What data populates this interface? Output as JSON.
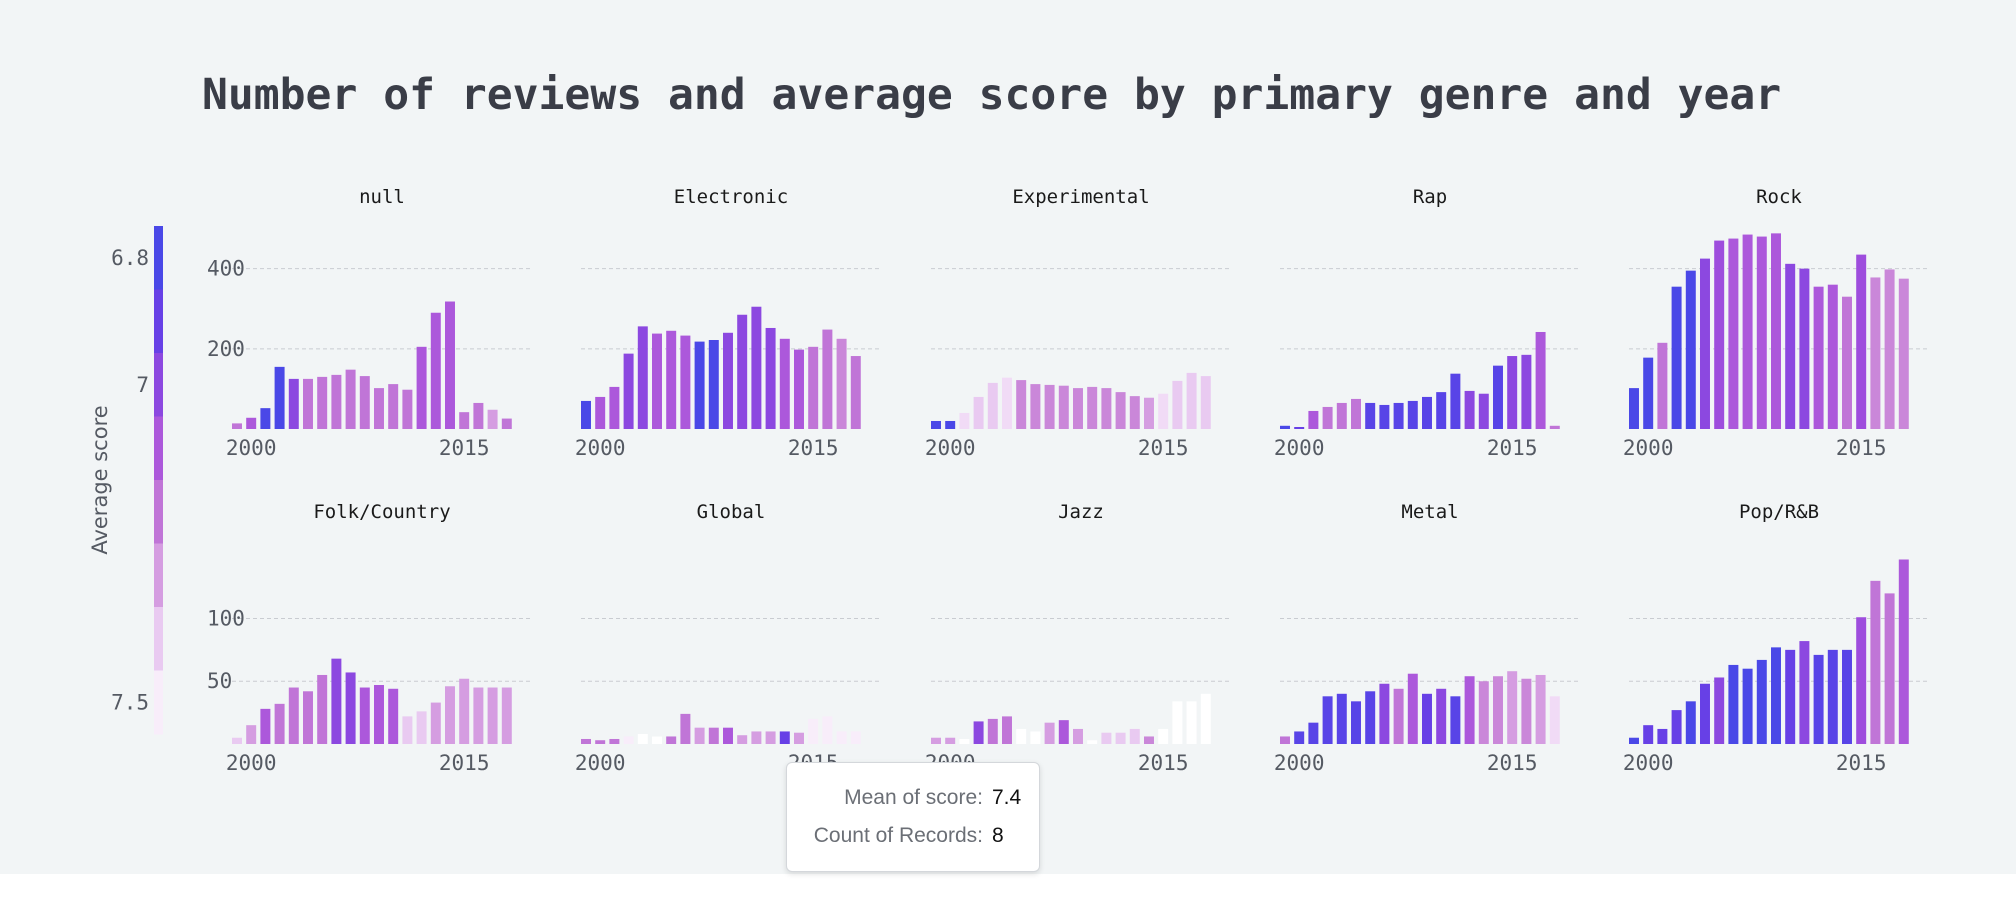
{
  "title": "Number of reviews and average score by primary genre and year",
  "legend": {
    "title": "Average score",
    "tick_labels": [
      "6.8",
      "7",
      "7.5"
    ],
    "tick_values": [
      6.8,
      7.0,
      7.5
    ],
    "domain": [
      6.75,
      7.55
    ],
    "colors": [
      "#3b4ce8",
      "#6a3fe6",
      "#a64fdc",
      "#c67ed6",
      "#e8c6f0",
      "#ffffff"
    ]
  },
  "tooltip": {
    "rows": [
      {
        "key": "Mean of score:",
        "value": "7.4"
      },
      {
        "key": "Count of Records:",
        "value": "8"
      }
    ]
  },
  "chart_data": {
    "type": "bar",
    "x": [
      1999,
      2000,
      2001,
      2002,
      2003,
      2004,
      2005,
      2006,
      2007,
      2008,
      2009,
      2010,
      2011,
      2012,
      2013,
      2014,
      2015,
      2016,
      2017,
      2018
    ],
    "xticks": [
      "2000",
      "2015"
    ],
    "xtick_values": [
      2000,
      2015
    ],
    "rows": [
      {
        "yticks": [
          "400",
          "200"
        ],
        "ytick_values": [
          400,
          200
        ],
        "ylim": [
          0,
          490
        ]
      },
      {
        "yticks": [
          "100",
          "50"
        ],
        "ytick_values": [
          100,
          50
        ],
        "ylim": [
          0,
          150
        ]
      }
    ],
    "panels": [
      {
        "name": "null",
        "row": 0,
        "counts": [
          14,
          28,
          52,
          155,
          125,
          125,
          130,
          135,
          148,
          132,
          102,
          112,
          98,
          205,
          290,
          318,
          42,
          65,
          48,
          26
        ],
        "scores": [
          7.2,
          7.1,
          6.8,
          6.8,
          7.0,
          7.2,
          7.2,
          7.2,
          7.2,
          7.2,
          7.2,
          7.2,
          7.2,
          7.1,
          7.1,
          7.1,
          7.2,
          7.2,
          7.3,
          7.2
        ]
      },
      {
        "name": "Electronic",
        "row": 0,
        "counts": [
          70,
          80,
          105,
          188,
          256,
          238,
          245,
          233,
          218,
          222,
          240,
          285,
          305,
          252,
          225,
          198,
          205,
          248,
          225,
          182
        ],
        "scores": [
          6.8,
          7.1,
          7.1,
          7.0,
          7.0,
          7.1,
          7.1,
          7.1,
          6.8,
          6.8,
          7.0,
          7.0,
          7.0,
          7.0,
          7.1,
          7.1,
          7.2,
          7.2,
          7.25,
          7.2
        ]
      },
      {
        "name": "Experimental",
        "row": 0,
        "counts": [
          20,
          20,
          40,
          80,
          115,
          128,
          122,
          112,
          110,
          108,
          102,
          105,
          102,
          92,
          82,
          78,
          88,
          120,
          140,
          132
        ],
        "scores": [
          6.8,
          6.8,
          7.45,
          7.4,
          7.4,
          7.45,
          7.25,
          7.25,
          7.25,
          7.25,
          7.25,
          7.25,
          7.25,
          7.25,
          7.25,
          7.3,
          7.45,
          7.4,
          7.4,
          7.4
        ]
      },
      {
        "name": "Rap",
        "row": 0,
        "counts": [
          8,
          5,
          45,
          55,
          65,
          75,
          65,
          60,
          65,
          70,
          80,
          92,
          138,
          95,
          88,
          158,
          182,
          185,
          242,
          8
        ],
        "scores": [
          6.8,
          6.9,
          7.1,
          7.2,
          7.2,
          7.2,
          6.85,
          6.85,
          6.85,
          6.85,
          6.85,
          6.85,
          6.85,
          7.0,
          7.0,
          6.85,
          7.0,
          7.0,
          7.1,
          7.2
        ]
      },
      {
        "name": "Rock",
        "row": 0,
        "counts": [
          102,
          178,
          215,
          355,
          395,
          425,
          470,
          475,
          485,
          480,
          488,
          412,
          400,
          355,
          360,
          330,
          435,
          378,
          398,
          375
        ],
        "scores": [
          6.8,
          6.8,
          7.2,
          6.8,
          6.8,
          7.0,
          7.05,
          7.1,
          7.1,
          7.1,
          7.1,
          7.0,
          7.0,
          7.1,
          7.1,
          7.2,
          7.05,
          7.25,
          7.25,
          7.25
        ]
      },
      {
        "name": "Folk/Country",
        "row": 1,
        "counts": [
          5,
          15,
          28,
          32,
          45,
          42,
          55,
          68,
          57,
          45,
          47,
          44,
          22,
          26,
          33,
          46,
          52,
          45,
          45,
          45
        ],
        "scores": [
          7.4,
          7.3,
          7.1,
          7.2,
          7.2,
          7.2,
          7.2,
          7.0,
          7.0,
          7.1,
          7.1,
          7.1,
          7.4,
          7.4,
          7.3,
          7.3,
          7.3,
          7.3,
          7.3,
          7.3
        ]
      },
      {
        "name": "Global",
        "row": 1,
        "counts": [
          4,
          3,
          4,
          6,
          8,
          6,
          6,
          24,
          13,
          13,
          13,
          7,
          10,
          10,
          10,
          9,
          20,
          22,
          10,
          10
        ],
        "scores": [
          7.2,
          7.2,
          7.2,
          7.5,
          7.6,
          7.6,
          7.2,
          7.2,
          7.3,
          7.2,
          7.1,
          7.3,
          7.3,
          7.3,
          6.9,
          7.3,
          7.5,
          7.5,
          7.5,
          7.5
        ]
      },
      {
        "name": "Jazz",
        "row": 1,
        "counts": [
          5,
          5,
          4,
          18,
          20,
          22,
          12,
          10,
          17,
          19,
          12,
          3,
          9,
          9,
          12,
          6,
          12,
          34,
          34,
          40
        ],
        "scores": [
          7.3,
          7.3,
          7.6,
          7.0,
          7.2,
          7.2,
          7.6,
          7.6,
          7.3,
          7.1,
          7.3,
          7.6,
          7.4,
          7.4,
          7.4,
          7.25,
          7.6,
          7.6,
          7.6,
          7.55
        ]
      },
      {
        "name": "Metal",
        "row": 1,
        "counts": [
          6,
          10,
          17,
          38,
          40,
          34,
          42,
          48,
          44,
          56,
          40,
          44,
          38,
          54,
          50,
          54,
          58,
          52,
          55,
          38
        ],
        "scores": [
          7.2,
          6.85,
          6.85,
          6.85,
          6.85,
          6.85,
          6.85,
          7.0,
          7.2,
          7.1,
          6.9,
          7.0,
          6.85,
          7.1,
          7.25,
          7.25,
          7.3,
          7.25,
          7.3,
          7.45
        ]
      },
      {
        "name": "Pop/R&B",
        "row": 1,
        "counts": [
          5,
          15,
          12,
          27,
          34,
          48,
          53,
          63,
          60,
          67,
          77,
          75,
          82,
          71,
          75,
          75,
          101,
          130,
          120,
          147
        ],
        "scores": [
          6.8,
          6.9,
          6.9,
          6.9,
          6.8,
          6.9,
          7.0,
          6.8,
          6.8,
          6.8,
          6.8,
          6.9,
          7.0,
          6.85,
          6.85,
          6.85,
          7.05,
          7.2,
          7.2,
          7.1
        ]
      }
    ]
  }
}
